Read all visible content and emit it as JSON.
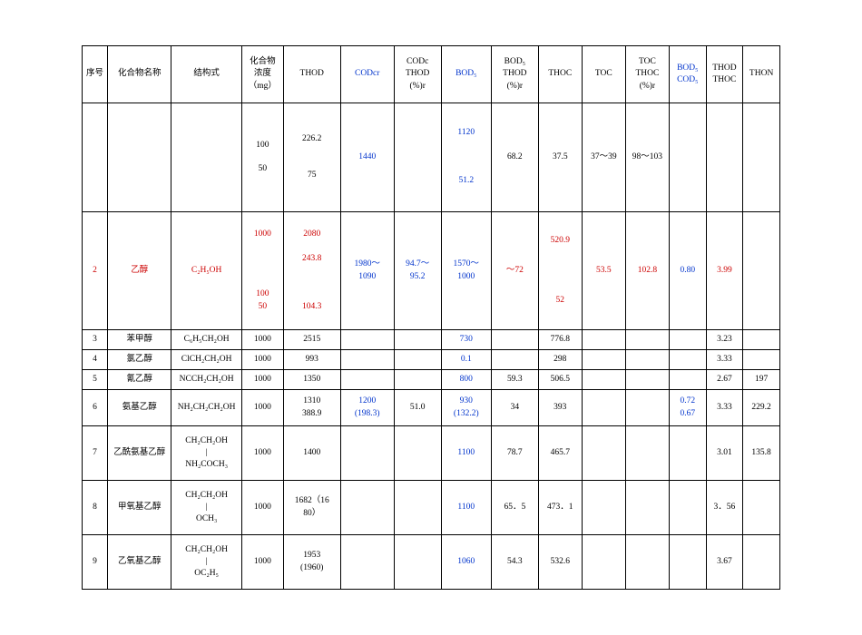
{
  "col_widths_pct": [
    3.8,
    9.5,
    10.5,
    6.2,
    8.5,
    8.0,
    7.0,
    7.5,
    7.0,
    6.5,
    6.5,
    6.5,
    5.5,
    5.5,
    5.5
  ],
  "headers": [
    {
      "t": "序号"
    },
    {
      "t": "化合物名称"
    },
    {
      "t": "结构式"
    },
    {
      "t": "化合物\n浓度\n（mg）"
    },
    {
      "t": "THOD"
    },
    {
      "t": "CODcr",
      "cls": "blue"
    },
    {
      "t": "CODc\nTHOD\n(%)r"
    },
    {
      "t": "BOD₅",
      "cls": "blue"
    },
    {
      "t": "BOD₅\nTHOD\n(%)r"
    },
    {
      "t": "THOC"
    },
    {
      "t": "TOC"
    },
    {
      "t": "TOC\nTHOC\n(%)r"
    },
    {
      "t": "BOD₅\nCOD₅",
      "cls": "blue"
    },
    {
      "t": "THOD\nTHOC"
    },
    {
      "t": "THON"
    }
  ],
  "rows": [
    {
      "cls": "r1",
      "cells": [
        {
          "t": ""
        },
        {
          "t": ""
        },
        {
          "t": ""
        },
        {
          "t": "100\n\n50",
          "cls": "ml"
        },
        {
          "t": "226.2\n\n\n75",
          "cls": "ml"
        },
        {
          "t": "1440",
          "cls": "blue"
        },
        {
          "t": ""
        },
        {
          "t": "1120\n\n\n\n51.2",
          "cls": "blue ml"
        },
        {
          "t": "68.2"
        },
        {
          "t": "37.5"
        },
        {
          "t": "37～39"
        },
        {
          "t": "98～103"
        },
        {
          "t": ""
        },
        {
          "t": ""
        },
        {
          "t": ""
        }
      ]
    },
    {
      "cls": "r2",
      "cells": [
        {
          "t": "2",
          "cls": "red"
        },
        {
          "t": "乙醇",
          "cls": "red"
        },
        {
          "t": "C₂H₅OH",
          "cls": "red"
        },
        {
          "t": "1000\n\n\n\n\n100\n50",
          "cls": "red ml"
        },
        {
          "t": "2080\n\n243.8\n\n\n\n104.3",
          "cls": "red ml"
        },
        {
          "t": "1980～\n1090",
          "cls": "blue ml"
        },
        {
          "t": "94.7～\n95.2",
          "cls": "blue ml"
        },
        {
          "t": "1570～\n1000",
          "cls": "blue ml"
        },
        {
          "t": "～72",
          "cls": "red"
        },
        {
          "t": "520.9\n\n\n\n\n52",
          "cls": "red ml"
        },
        {
          "t": "53.5",
          "cls": "red"
        },
        {
          "t": "102.8",
          "cls": "red"
        },
        {
          "t": "0.80",
          "cls": "blue"
        },
        {
          "t": "3.99",
          "cls": "red"
        },
        {
          "t": ""
        }
      ]
    },
    {
      "cls": "rs",
      "cells": [
        {
          "t": "3"
        },
        {
          "t": "苯甲醇"
        },
        {
          "t": "C₆H₅CH₂OH"
        },
        {
          "t": "1000"
        },
        {
          "t": "2515"
        },
        {
          "t": ""
        },
        {
          "t": ""
        },
        {
          "t": "730",
          "cls": "blue"
        },
        {
          "t": ""
        },
        {
          "t": "776.8"
        },
        {
          "t": ""
        },
        {
          "t": ""
        },
        {
          "t": ""
        },
        {
          "t": "3.23"
        },
        {
          "t": ""
        }
      ]
    },
    {
      "cls": "rs",
      "cells": [
        {
          "t": "4"
        },
        {
          "t": "氯乙醇"
        },
        {
          "t": "ClCH₂CH₂OH"
        },
        {
          "t": "1000"
        },
        {
          "t": "993"
        },
        {
          "t": ""
        },
        {
          "t": ""
        },
        {
          "t": "0.1",
          "cls": "blue"
        },
        {
          "t": ""
        },
        {
          "t": "298"
        },
        {
          "t": ""
        },
        {
          "t": ""
        },
        {
          "t": ""
        },
        {
          "t": "3.33"
        },
        {
          "t": ""
        }
      ]
    },
    {
      "cls": "rs",
      "cells": [
        {
          "t": "5"
        },
        {
          "t": "氰乙醇"
        },
        {
          "t": "NCCH₂CH₂OH"
        },
        {
          "t": "1000"
        },
        {
          "t": "1350"
        },
        {
          "t": ""
        },
        {
          "t": ""
        },
        {
          "t": "800",
          "cls": "blue"
        },
        {
          "t": "59.3"
        },
        {
          "t": "506.5"
        },
        {
          "t": ""
        },
        {
          "t": ""
        },
        {
          "t": ""
        },
        {
          "t": "2.67"
        },
        {
          "t": "197"
        }
      ]
    },
    {
      "cls": "r6",
      "cells": [
        {
          "t": "6"
        },
        {
          "t": "氨基乙醇"
        },
        {
          "t": "NH₂CH₂CH₂OH"
        },
        {
          "t": "1000"
        },
        {
          "t": "1310\n388.9",
          "cls": "ml"
        },
        {
          "t": "1200\n(198.3)",
          "cls": "blue ml"
        },
        {
          "t": "51.0"
        },
        {
          "t": "930\n(132.2)",
          "cls": "blue ml"
        },
        {
          "t": "34"
        },
        {
          "t": "393"
        },
        {
          "t": ""
        },
        {
          "t": ""
        },
        {
          "t": "0.72\n0.67",
          "cls": "blue ml"
        },
        {
          "t": "3.33"
        },
        {
          "t": "229.2"
        }
      ]
    },
    {
      "cls": "r7",
      "cells": [
        {
          "t": "7"
        },
        {
          "t": "乙酰氨基乙醇"
        },
        {
          "t": "CH₂CH₂OH\n|\nNH₂COCH₃",
          "cls": "ml"
        },
        {
          "t": "1000"
        },
        {
          "t": "1400"
        },
        {
          "t": ""
        },
        {
          "t": ""
        },
        {
          "t": "1100",
          "cls": "blue"
        },
        {
          "t": "78.7"
        },
        {
          "t": "465.7"
        },
        {
          "t": ""
        },
        {
          "t": ""
        },
        {
          "t": ""
        },
        {
          "t": "3.01"
        },
        {
          "t": "135.8"
        }
      ]
    },
    {
      "cls": "r8",
      "cells": [
        {
          "t": "8"
        },
        {
          "t": "甲氧基乙醇"
        },
        {
          "t": "CH₂CH₂OH\n|\nOCH₃",
          "cls": "ml"
        },
        {
          "t": "1000"
        },
        {
          "t": "1682（16\n80）",
          "cls": "ml"
        },
        {
          "t": ""
        },
        {
          "t": ""
        },
        {
          "t": "1100",
          "cls": "blue"
        },
        {
          "t": "65．5"
        },
        {
          "t": "473．1"
        },
        {
          "t": ""
        },
        {
          "t": ""
        },
        {
          "t": ""
        },
        {
          "t": "3．56"
        },
        {
          "t": ""
        }
      ]
    },
    {
      "cls": "r9",
      "cells": [
        {
          "t": "9"
        },
        {
          "t": "乙氧基乙醇"
        },
        {
          "t": "CH₂CH₂OH\n|\nOC₂H₅",
          "cls": "ml"
        },
        {
          "t": "1000"
        },
        {
          "t": "1953\n(1960)",
          "cls": "ml"
        },
        {
          "t": ""
        },
        {
          "t": ""
        },
        {
          "t": "1060",
          "cls": "blue"
        },
        {
          "t": "54.3"
        },
        {
          "t": "532.6"
        },
        {
          "t": ""
        },
        {
          "t": ""
        },
        {
          "t": ""
        },
        {
          "t": "3.67"
        },
        {
          "t": ""
        }
      ]
    }
  ]
}
